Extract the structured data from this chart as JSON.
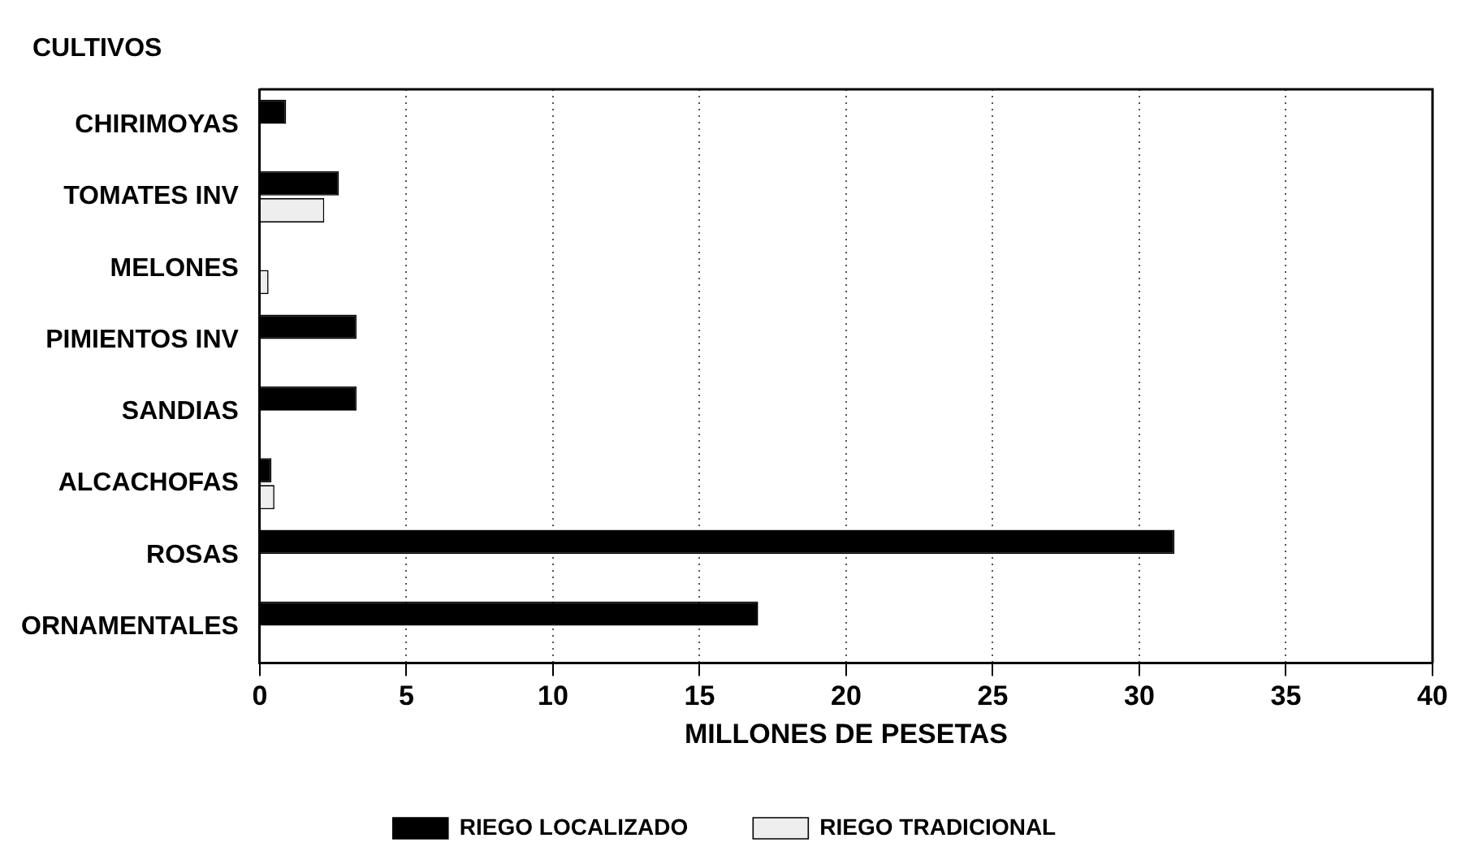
{
  "chart_data": {
    "type": "bar",
    "orientation": "horizontal",
    "ylabel": "CULTIVOS",
    "xlabel": "MILLONES DE PESETAS",
    "categories": [
      "CHIRIMOYAS",
      "TOMATES INV",
      "MELONES",
      "PIMIENTOS INV",
      "SANDIAS",
      "ALCACHOFAS",
      "ROSAS",
      "ORNAMENTALES"
    ],
    "series": [
      {
        "name": "RIEGO LOCALIZADO",
        "color": "#000000",
        "values": [
          0.9,
          2.7,
          0,
          3.3,
          3.3,
          0.4,
          31.2,
          17.0
        ]
      },
      {
        "name": "RIEGO TRADICIONAL",
        "color": "#eeeeee",
        "values": [
          0,
          2.2,
          0.3,
          0,
          0,
          0.5,
          0,
          0
        ]
      }
    ],
    "xlim": [
      0,
      40
    ],
    "xticks": [
      0,
      5,
      10,
      15,
      20,
      25,
      30,
      35,
      40
    ],
    "grid": "x",
    "legend": "bottom"
  }
}
